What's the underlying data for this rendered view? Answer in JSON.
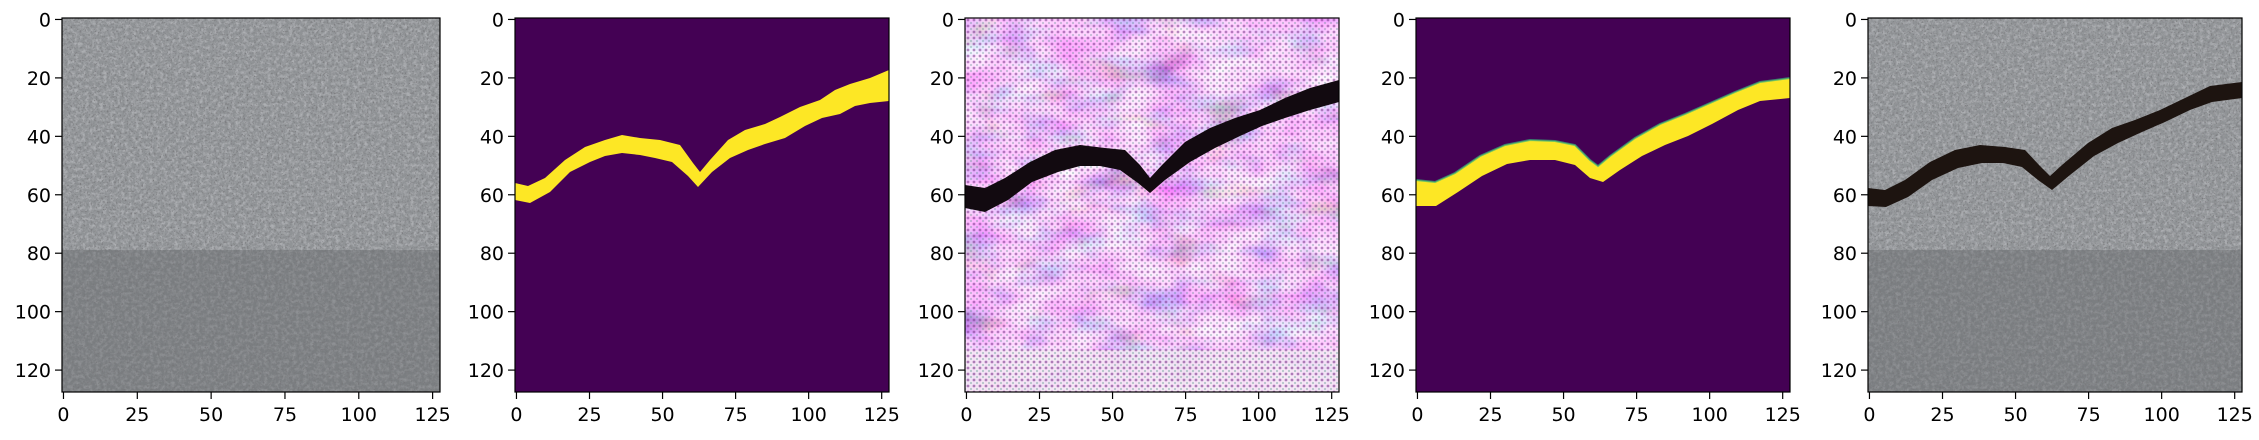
{
  "figure": {
    "panel_count": 5,
    "panels": [
      {
        "id": "panel-1",
        "content": "concrete-texture-photo",
        "xticks": [
          0,
          25,
          50,
          75,
          100,
          125
        ],
        "yticks": [
          0,
          20,
          40,
          60,
          80,
          100,
          120
        ]
      },
      {
        "id": "panel-2",
        "content": "crack-mask-binary",
        "xticks": [
          0,
          25,
          50,
          75,
          100,
          125
        ],
        "yticks": [
          0,
          20,
          40,
          60,
          80,
          100,
          120
        ]
      },
      {
        "id": "panel-3",
        "content": "generated-crack-pattern",
        "xticks": [
          0,
          25,
          50,
          75,
          100,
          125
        ],
        "yticks": [
          0,
          20,
          40,
          60,
          80,
          100,
          120
        ]
      },
      {
        "id": "panel-4",
        "content": "crack-mask-smooth",
        "xticks": [
          0,
          25,
          50,
          75,
          100,
          125
        ],
        "yticks": [
          0,
          20,
          40,
          60,
          80,
          100,
          120
        ]
      },
      {
        "id": "panel-5",
        "content": "concrete-with-crack-photo",
        "xticks": [
          0,
          25,
          50,
          75,
          100,
          125
        ],
        "yticks": [
          0,
          20,
          40,
          60,
          80,
          100,
          120
        ]
      }
    ],
    "image_extent": [
      0,
      128
    ],
    "colors": {
      "mask_background": "#440154",
      "mask_crack": "#fde725",
      "concrete": "#8b8e91",
      "crack_dark": "#1d1410",
      "pink": "#ea6fe0"
    }
  }
}
